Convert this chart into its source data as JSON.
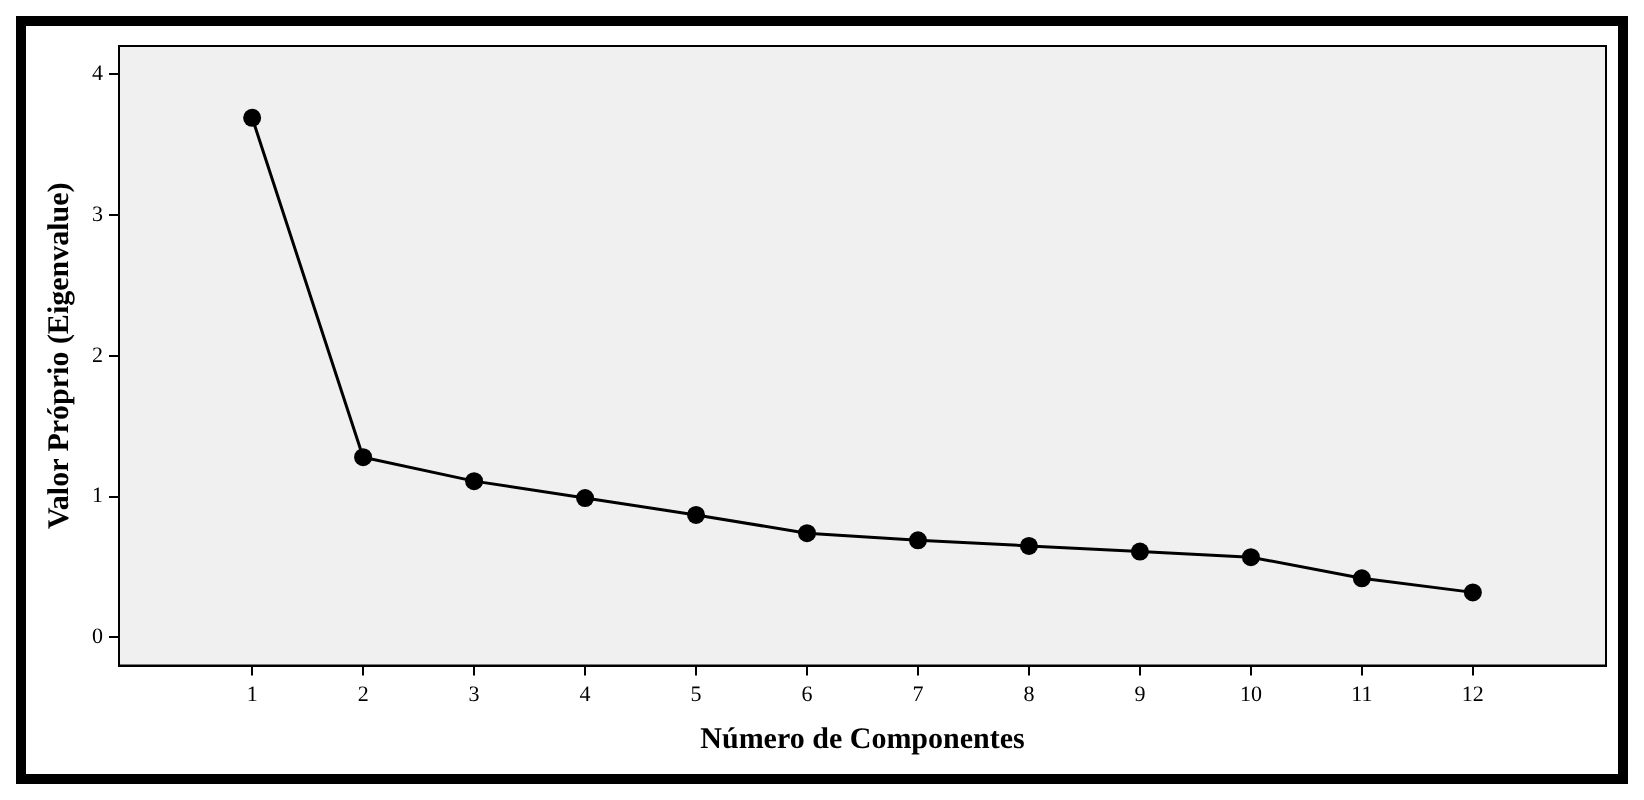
{
  "chart_data": {
    "type": "line",
    "xlabel": "Número de Componentes",
    "ylabel": "Valor Próprio (Eigenvalue)",
    "x": [
      1,
      2,
      3,
      4,
      5,
      6,
      7,
      8,
      9,
      10,
      11,
      12
    ],
    "series": [
      {
        "color": "#000000",
        "values": [
          3.69,
          1.28,
          1.11,
          0.99,
          0.87,
          0.74,
          0.69,
          0.65,
          0.61,
          0.57,
          0.42,
          0.32
        ]
      }
    ],
    "xlim": [
      -0.2,
      13.2
    ],
    "xticks": [
      1,
      2,
      3,
      4,
      5,
      6,
      7,
      8,
      9,
      10,
      11,
      12
    ],
    "ylim": [
      -0.2,
      4.2
    ],
    "yticks": [
      0,
      1,
      2,
      3,
      4
    ],
    "grid": false,
    "legend": false,
    "marker": "circle",
    "line_style": "solid"
  }
}
